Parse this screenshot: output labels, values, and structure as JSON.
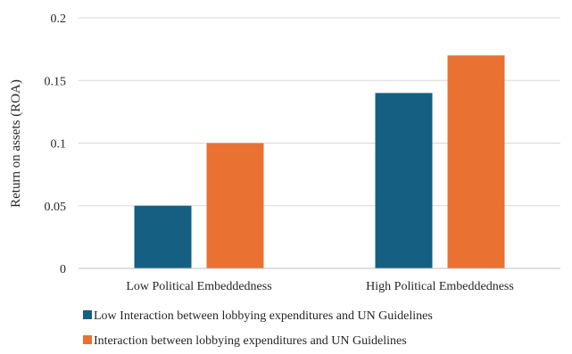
{
  "chart_data": {
    "type": "bar",
    "title": "",
    "xlabel": "",
    "ylabel": "Return on assets (ROA)",
    "categories": [
      "Low Political Embeddedness",
      "High Political Embeddedness"
    ],
    "series": [
      {
        "name": "Low Interaction between lobbying expenditures and UN Guidelines",
        "values": [
          0.05,
          0.14
        ],
        "color": "#156082"
      },
      {
        "name": "Interaction between lobbying expenditures and UN Guidelines",
        "values": [
          0.1,
          0.17
        ],
        "color": "#E97132"
      }
    ],
    "ylim": [
      0,
      0.2
    ],
    "yticks": [
      "0",
      "0.05",
      "0.1",
      "0.15",
      "0.2"
    ],
    "grid": true,
    "legend_position": "bottom"
  }
}
